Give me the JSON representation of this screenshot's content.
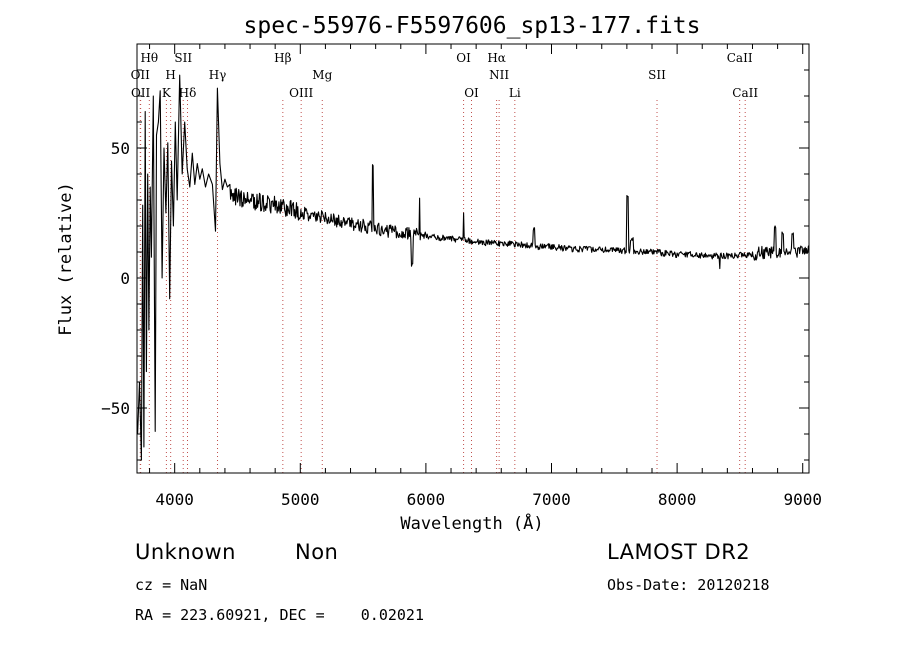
{
  "chart_data": {
    "type": "line",
    "title": "spec-55976-F5597606_sp13-177.fits",
    "xlabel": "Wavelength (Å)",
    "ylabel": "Flux (relative)",
    "xlim": [
      3700,
      9050
    ],
    "ylim": [
      -75,
      90
    ],
    "xticks": [
      4000,
      5000,
      6000,
      7000,
      8000,
      9000
    ],
    "xtick_labels": [
      "4000",
      "5000",
      "6000",
      "7000",
      "8000",
      "9000"
    ],
    "yticks": [
      -50,
      0,
      50
    ],
    "ytick_labels": [
      "−50",
      "0",
      "50"
    ],
    "line_color": "#000000",
    "marker_color": "#c0504d",
    "lines": [
      {
        "label": "Hθ",
        "wavelength": 3798,
        "row": 0
      },
      {
        "label": "OII",
        "wavelength": 3726,
        "row": 1
      },
      {
        "label": "OII",
        "wavelength": 3729,
        "row": 2
      },
      {
        "label": "SII",
        "wavelength": 4068,
        "row": 0
      },
      {
        "label": "H",
        "wavelength": 3968,
        "row": 1
      },
      {
        "label": "K",
        "wavelength": 3934,
        "row": 2
      },
      {
        "label": "Hδ",
        "wavelength": 4102,
        "row": 2
      },
      {
        "label": "Hγ",
        "wavelength": 4341,
        "row": 1
      },
      {
        "label": "Hβ",
        "wavelength": 4861,
        "row": 0
      },
      {
        "label": "OIII",
        "wavelength": 5007,
        "row": 2
      },
      {
        "label": "Mg",
        "wavelength": 5175,
        "row": 1
      },
      {
        "label": "OI",
        "wavelength": 6300,
        "row": 0
      },
      {
        "label": "OI",
        "wavelength": 6363,
        "row": 2
      },
      {
        "label": "Hα",
        "wavelength": 6563,
        "row": 0
      },
      {
        "label": "NII",
        "wavelength": 6583,
        "row": 1
      },
      {
        "label": "Li",
        "wavelength": 6708,
        "row": 2
      },
      {
        "label": "SII",
        "wavelength": 7840,
        "row": 1
      },
      {
        "label": "CaII",
        "wavelength": 8498,
        "row": 0
      },
      {
        "label": "CaII",
        "wavelength": 8542,
        "row": 2
      }
    ],
    "continuum": [
      [
        3700,
        -10
      ],
      [
        3750,
        0
      ],
      [
        3800,
        8
      ],
      [
        3850,
        15
      ],
      [
        3900,
        22
      ],
      [
        3950,
        26
      ],
      [
        4000,
        28
      ],
      [
        4100,
        31
      ],
      [
        4200,
        32
      ],
      [
        4300,
        33
      ],
      [
        4400,
        32
      ],
      [
        4500,
        31
      ],
      [
        4600,
        30
      ],
      [
        4700,
        29
      ],
      [
        4800,
        28
      ],
      [
        4900,
        27
      ],
      [
        5000,
        25
      ],
      [
        5100,
        24
      ],
      [
        5200,
        23
      ],
      [
        5300,
        22
      ],
      [
        5400,
        21
      ],
      [
        5500,
        20
      ],
      [
        5600,
        19
      ],
      [
        5700,
        18
      ],
      [
        5800,
        17.5
      ],
      [
        5900,
        17
      ],
      [
        6000,
        16
      ],
      [
        6100,
        15.5
      ],
      [
        6200,
        15
      ],
      [
        6300,
        14.5
      ],
      [
        6400,
        14
      ],
      [
        6500,
        13.5
      ],
      [
        6600,
        13
      ],
      [
        6700,
        13
      ],
      [
        6800,
        12.5
      ],
      [
        6900,
        12
      ],
      [
        7000,
        12
      ],
      [
        7100,
        11.5
      ],
      [
        7200,
        11
      ],
      [
        7300,
        11
      ],
      [
        7400,
        11
      ],
      [
        7500,
        10.5
      ],
      [
        7600,
        10.5
      ],
      [
        7700,
        10
      ],
      [
        7800,
        10
      ],
      [
        7900,
        9.5
      ],
      [
        8000,
        9
      ],
      [
        8100,
        9
      ],
      [
        8200,
        8.5
      ],
      [
        8300,
        8.5
      ],
      [
        8400,
        8.5
      ],
      [
        8500,
        9
      ],
      [
        8600,
        9
      ],
      [
        8700,
        10
      ],
      [
        8800,
        10
      ],
      [
        8900,
        10
      ],
      [
        9000,
        10
      ],
      [
        9050,
        10
      ]
    ],
    "features": [
      {
        "x": 5577,
        "y": 43,
        "w": 4
      },
      {
        "x": 5890,
        "y": 5,
        "w": 6
      },
      {
        "x": 5950,
        "y": 30,
        "w": 4
      },
      {
        "x": 6300,
        "y": 25,
        "w": 4
      },
      {
        "x": 6860,
        "y": 19,
        "w": 6
      },
      {
        "x": 7605,
        "y": 31,
        "w": 5
      },
      {
        "x": 7640,
        "y": 15,
        "w": 10
      },
      {
        "x": 8340,
        "y": 3,
        "w": 4
      },
      {
        "x": 8780,
        "y": 20,
        "w": 5
      },
      {
        "x": 8840,
        "y": 17,
        "w": 5
      },
      {
        "x": 8920,
        "y": 17,
        "w": 5
      },
      {
        "x": 8990,
        "y": 12,
        "w": 5
      }
    ],
    "blue_spikes": [
      [
        3705,
        -60
      ],
      [
        3720,
        -40
      ],
      [
        3735,
        -70
      ],
      [
        3745,
        28
      ],
      [
        3755,
        -65
      ],
      [
        3765,
        64
      ],
      [
        3775,
        -36
      ],
      [
        3785,
        40
      ],
      [
        3795,
        -20
      ],
      [
        3805,
        35
      ],
      [
        3815,
        8
      ],
      [
        3830,
        70
      ],
      [
        3845,
        -59
      ],
      [
        3855,
        55
      ],
      [
        3870,
        60
      ],
      [
        3885,
        72
      ],
      [
        3900,
        0
      ],
      [
        3915,
        50
      ],
      [
        3930,
        25
      ],
      [
        3945,
        52
      ],
      [
        3960,
        -8
      ],
      [
        3975,
        45
      ],
      [
        3990,
        20
      ],
      [
        4005,
        60
      ],
      [
        4020,
        30
      ],
      [
        4040,
        78
      ],
      [
        4060,
        40
      ],
      [
        4080,
        60
      ],
      [
        4100,
        42
      ],
      [
        4120,
        35
      ],
      [
        4140,
        48
      ],
      [
        4160,
        36
      ],
      [
        4180,
        44
      ],
      [
        4200,
        38
      ],
      [
        4220,
        42
      ],
      [
        4245,
        35
      ],
      [
        4270,
        40
      ],
      [
        4300,
        36
      ],
      [
        4325,
        18
      ],
      [
        4340,
        73
      ],
      [
        4360,
        44
      ],
      [
        4380,
        34
      ],
      [
        4400,
        38
      ],
      [
        4420,
        35
      ],
      [
        4440,
        36
      ]
    ]
  },
  "info": {
    "class": "Unknown",
    "subclass": "Non",
    "cz": "cz = NaN",
    "ra_dec": "RA = 223.60921, DEC =    0.02021",
    "survey": "LAMOST DR2",
    "obs_date": "Obs-Date: 20120218"
  }
}
